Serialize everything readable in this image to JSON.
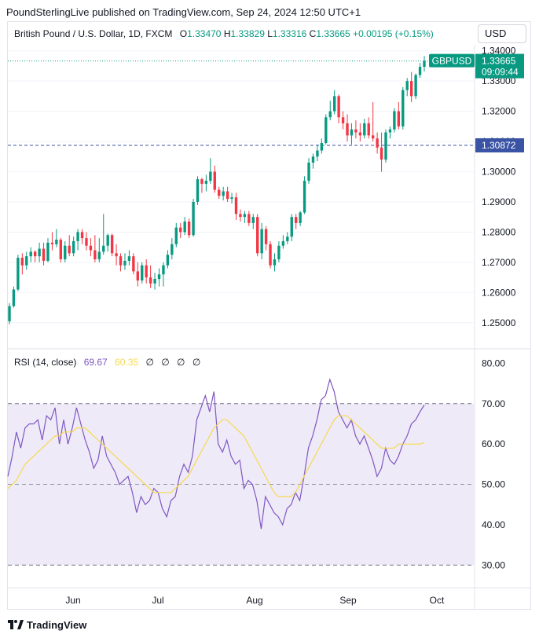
{
  "header": {
    "publisher": "PoundSterlingLive published on TradingView.com, Sep 24, 2024 12:50 UTC+1"
  },
  "legend": {
    "symbol": "British Pound / U.S. Dollar, 1D, FXCM",
    "o_label": "O",
    "o_value": "1.33470",
    "h_label": "H",
    "h_value": "1.33829",
    "l_label": "L",
    "l_value": "1.33316",
    "c_label": "C",
    "c_value": "1.33665",
    "change": "+0.00195 (+0.15%)"
  },
  "currency_button": "USD",
  "price_tags": {
    "symbol_tag": "GBPUSD",
    "last_price": "1.33665",
    "countdown": "09:09:44",
    "line_price": "1.30872"
  },
  "rsi_legend": {
    "name": "RSI (14, close)",
    "rsi_value": "69.67",
    "ma_value": "60.35",
    "na": [
      "∅",
      "∅",
      "∅",
      "∅"
    ]
  },
  "footer": {
    "brand": "TradingView"
  },
  "colors": {
    "up": "#089981",
    "down": "#f23645",
    "rsi": "#7e57c2",
    "rsi_ma": "#f7d94c",
    "band": "#efeaf8",
    "hline": "#3a53a4"
  },
  "chart_data": [
    {
      "type": "candlestick",
      "title": "British Pound / U.S. Dollar, 1D, FXCM",
      "ylim": [
        1.245,
        1.342
      ],
      "y_ticks": [
        "1.25000",
        "1.26000",
        "1.27000",
        "1.28000",
        "1.29000",
        "1.30000",
        "1.31000",
        "1.32000",
        "1.33000",
        "1.34000"
      ],
      "x_ticks": [
        "Jun",
        "Jul",
        "Aug",
        "Sep",
        "Oct"
      ],
      "horizontal_line": 1.30872,
      "last_close": 1.33665,
      "candles": [
        {
          "o": 1.2505,
          "h": 1.2565,
          "l": 1.2495,
          "c": 1.2555
        },
        {
          "o": 1.2555,
          "h": 1.262,
          "l": 1.255,
          "c": 1.261
        },
        {
          "o": 1.261,
          "h": 1.2725,
          "l": 1.2605,
          "c": 1.2715
        },
        {
          "o": 1.2715,
          "h": 1.273,
          "l": 1.266,
          "c": 1.269
        },
        {
          "o": 1.269,
          "h": 1.2735,
          "l": 1.2675,
          "c": 1.272
        },
        {
          "o": 1.272,
          "h": 1.275,
          "l": 1.27,
          "c": 1.2735
        },
        {
          "o": 1.2735,
          "h": 1.274,
          "l": 1.27,
          "c": 1.272
        },
        {
          "o": 1.272,
          "h": 1.2765,
          "l": 1.27,
          "c": 1.2745
        },
        {
          "o": 1.2745,
          "h": 1.2765,
          "l": 1.269,
          "c": 1.2705
        },
        {
          "o": 1.2705,
          "h": 1.278,
          "l": 1.27,
          "c": 1.2765
        },
        {
          "o": 1.2765,
          "h": 1.28,
          "l": 1.274,
          "c": 1.276
        },
        {
          "o": 1.276,
          "h": 1.281,
          "l": 1.275,
          "c": 1.2775
        },
        {
          "o": 1.2775,
          "h": 1.278,
          "l": 1.27,
          "c": 1.271
        },
        {
          "o": 1.271,
          "h": 1.277,
          "l": 1.27,
          "c": 1.2755
        },
        {
          "o": 1.2755,
          "h": 1.279,
          "l": 1.272,
          "c": 1.273
        },
        {
          "o": 1.273,
          "h": 1.2785,
          "l": 1.272,
          "c": 1.277
        },
        {
          "o": 1.277,
          "h": 1.281,
          "l": 1.274,
          "c": 1.28
        },
        {
          "o": 1.28,
          "h": 1.281,
          "l": 1.276,
          "c": 1.278
        },
        {
          "o": 1.278,
          "h": 1.28,
          "l": 1.274,
          "c": 1.2755
        },
        {
          "o": 1.2755,
          "h": 1.278,
          "l": 1.272,
          "c": 1.274
        },
        {
          "o": 1.274,
          "h": 1.279,
          "l": 1.27,
          "c": 1.271
        },
        {
          "o": 1.271,
          "h": 1.278,
          "l": 1.27,
          "c": 1.2735
        },
        {
          "o": 1.2735,
          "h": 1.286,
          "l": 1.2725,
          "c": 1.2755
        },
        {
          "o": 1.2755,
          "h": 1.2795,
          "l": 1.2735,
          "c": 1.279
        },
        {
          "o": 1.279,
          "h": 1.2795,
          "l": 1.272,
          "c": 1.273
        },
        {
          "o": 1.273,
          "h": 1.276,
          "l": 1.269,
          "c": 1.272
        },
        {
          "o": 1.272,
          "h": 1.273,
          "l": 1.267,
          "c": 1.269
        },
        {
          "o": 1.269,
          "h": 1.273,
          "l": 1.2675,
          "c": 1.2705
        },
        {
          "o": 1.2705,
          "h": 1.274,
          "l": 1.269,
          "c": 1.272
        },
        {
          "o": 1.272,
          "h": 1.273,
          "l": 1.266,
          "c": 1.267
        },
        {
          "o": 1.267,
          "h": 1.27,
          "l": 1.262,
          "c": 1.264
        },
        {
          "o": 1.264,
          "h": 1.27,
          "l": 1.263,
          "c": 1.269
        },
        {
          "o": 1.269,
          "h": 1.271,
          "l": 1.263,
          "c": 1.265
        },
        {
          "o": 1.265,
          "h": 1.269,
          "l": 1.2615,
          "c": 1.263
        },
        {
          "o": 1.263,
          "h": 1.2665,
          "l": 1.261,
          "c": 1.2645
        },
        {
          "o": 1.2645,
          "h": 1.268,
          "l": 1.262,
          "c": 1.266
        },
        {
          "o": 1.266,
          "h": 1.27,
          "l": 1.262,
          "c": 1.269
        },
        {
          "o": 1.269,
          "h": 1.274,
          "l": 1.268,
          "c": 1.2725
        },
        {
          "o": 1.2725,
          "h": 1.278,
          "l": 1.271,
          "c": 1.276
        },
        {
          "o": 1.276,
          "h": 1.283,
          "l": 1.275,
          "c": 1.2815
        },
        {
          "o": 1.2815,
          "h": 1.283,
          "l": 1.278,
          "c": 1.28
        },
        {
          "o": 1.28,
          "h": 1.285,
          "l": 1.279,
          "c": 1.2835
        },
        {
          "o": 1.2835,
          "h": 1.2845,
          "l": 1.278,
          "c": 1.279
        },
        {
          "o": 1.279,
          "h": 1.291,
          "l": 1.2785,
          "c": 1.29
        },
        {
          "o": 1.29,
          "h": 1.2985,
          "l": 1.289,
          "c": 1.2975
        },
        {
          "o": 1.2975,
          "h": 1.298,
          "l": 1.293,
          "c": 1.296
        },
        {
          "o": 1.296,
          "h": 1.299,
          "l": 1.2935,
          "c": 1.297
        },
        {
          "o": 1.297,
          "h": 1.3045,
          "l": 1.296,
          "c": 1.3
        },
        {
          "o": 1.3,
          "h": 1.302,
          "l": 1.293,
          "c": 1.294
        },
        {
          "o": 1.294,
          "h": 1.295,
          "l": 1.291,
          "c": 1.292
        },
        {
          "o": 1.292,
          "h": 1.295,
          "l": 1.2905,
          "c": 1.2935
        },
        {
          "o": 1.2935,
          "h": 1.295,
          "l": 1.29,
          "c": 1.291
        },
        {
          "o": 1.291,
          "h": 1.293,
          "l": 1.2895,
          "c": 1.2915
        },
        {
          "o": 1.2915,
          "h": 1.293,
          "l": 1.284,
          "c": 1.286
        },
        {
          "o": 1.286,
          "h": 1.2875,
          "l": 1.2835,
          "c": 1.285
        },
        {
          "o": 1.285,
          "h": 1.287,
          "l": 1.283,
          "c": 1.286
        },
        {
          "o": 1.286,
          "h": 1.287,
          "l": 1.282,
          "c": 1.283
        },
        {
          "o": 1.283,
          "h": 1.286,
          "l": 1.281,
          "c": 1.285
        },
        {
          "o": 1.285,
          "h": 1.286,
          "l": 1.272,
          "c": 1.273
        },
        {
          "o": 1.273,
          "h": 1.283,
          "l": 1.271,
          "c": 1.281
        },
        {
          "o": 1.281,
          "h": 1.282,
          "l": 1.274,
          "c": 1.276
        },
        {
          "o": 1.276,
          "h": 1.277,
          "l": 1.268,
          "c": 1.269
        },
        {
          "o": 1.269,
          "h": 1.273,
          "l": 1.267,
          "c": 1.271
        },
        {
          "o": 1.271,
          "h": 1.277,
          "l": 1.27,
          "c": 1.2755
        },
        {
          "o": 1.2755,
          "h": 1.279,
          "l": 1.2745,
          "c": 1.277
        },
        {
          "o": 1.277,
          "h": 1.28,
          "l": 1.276,
          "c": 1.2785
        },
        {
          "o": 1.2785,
          "h": 1.286,
          "l": 1.277,
          "c": 1.285
        },
        {
          "o": 1.285,
          "h": 1.286,
          "l": 1.281,
          "c": 1.283
        },
        {
          "o": 1.283,
          "h": 1.287,
          "l": 1.282,
          "c": 1.2865
        },
        {
          "o": 1.2865,
          "h": 1.2985,
          "l": 1.286,
          "c": 1.297
        },
        {
          "o": 1.297,
          "h": 1.3045,
          "l": 1.296,
          "c": 1.303
        },
        {
          "o": 1.303,
          "h": 1.306,
          "l": 1.301,
          "c": 1.305
        },
        {
          "o": 1.305,
          "h": 1.309,
          "l": 1.3035,
          "c": 1.307
        },
        {
          "o": 1.307,
          "h": 1.311,
          "l": 1.306,
          "c": 1.3095
        },
        {
          "o": 1.3095,
          "h": 1.319,
          "l": 1.309,
          "c": 1.318
        },
        {
          "o": 1.318,
          "h": 1.3235,
          "l": 1.317,
          "c": 1.32
        },
        {
          "o": 1.32,
          "h": 1.327,
          "l": 1.319,
          "c": 1.325
        },
        {
          "o": 1.325,
          "h": 1.3255,
          "l": 1.316,
          "c": 1.318
        },
        {
          "o": 1.318,
          "h": 1.32,
          "l": 1.314,
          "c": 1.316
        },
        {
          "o": 1.316,
          "h": 1.319,
          "l": 1.31,
          "c": 1.312
        },
        {
          "o": 1.312,
          "h": 1.316,
          "l": 1.309,
          "c": 1.314
        },
        {
          "o": 1.314,
          "h": 1.317,
          "l": 1.311,
          "c": 1.313
        },
        {
          "o": 1.313,
          "h": 1.316,
          "l": 1.31,
          "c": 1.312
        },
        {
          "o": 1.312,
          "h": 1.3175,
          "l": 1.311,
          "c": 1.316
        },
        {
          "o": 1.316,
          "h": 1.318,
          "l": 1.311,
          "c": 1.312
        },
        {
          "o": 1.312,
          "h": 1.323,
          "l": 1.31,
          "c": 1.311
        },
        {
          "o": 1.311,
          "h": 1.313,
          "l": 1.306,
          "c": 1.308
        },
        {
          "o": 1.308,
          "h": 1.313,
          "l": 1.3,
          "c": 1.304
        },
        {
          "o": 1.304,
          "h": 1.314,
          "l": 1.303,
          "c": 1.313
        },
        {
          "o": 1.313,
          "h": 1.315,
          "l": 1.311,
          "c": 1.314
        },
        {
          "o": 1.314,
          "h": 1.321,
          "l": 1.313,
          "c": 1.32
        },
        {
          "o": 1.32,
          "h": 1.323,
          "l": 1.314,
          "c": 1.315
        },
        {
          "o": 1.315,
          "h": 1.328,
          "l": 1.314,
          "c": 1.327
        },
        {
          "o": 1.327,
          "h": 1.331,
          "l": 1.325,
          "c": 1.33
        },
        {
          "o": 1.33,
          "h": 1.333,
          "l": 1.323,
          "c": 1.325
        },
        {
          "o": 1.325,
          "h": 1.3325,
          "l": 1.324,
          "c": 1.332
        },
        {
          "o": 1.332,
          "h": 1.336,
          "l": 1.331,
          "c": 1.3347
        },
        {
          "o": 1.3347,
          "h": 1.33829,
          "l": 1.33316,
          "c": 1.33665
        }
      ]
    },
    {
      "type": "line",
      "title": "RSI (14, close)",
      "ylim": [
        25,
        83
      ],
      "y_ticks": [
        "30.00",
        "40.00",
        "50.00",
        "60.00",
        "70.00",
        "80.00"
      ],
      "levels": [
        30,
        50,
        70
      ],
      "series": [
        {
          "name": "RSI",
          "values": [
            52,
            57,
            63,
            59,
            64,
            65,
            65,
            66,
            61,
            67,
            66,
            69,
            60,
            66,
            60,
            64,
            69,
            65,
            61,
            58,
            54,
            56,
            62,
            57,
            55,
            53,
            50,
            51,
            52,
            48,
            43,
            47,
            45,
            46,
            49,
            48,
            44,
            42,
            46,
            47,
            52,
            55,
            53,
            57,
            66,
            69,
            72,
            68,
            73,
            60,
            58,
            61,
            57,
            55,
            56,
            49,
            51,
            50,
            46,
            39,
            47,
            45,
            43,
            42,
            40,
            44,
            45,
            48,
            46,
            52,
            59,
            62,
            66,
            71,
            72,
            76,
            73,
            68,
            66,
            64,
            66,
            62,
            60,
            62,
            59,
            56,
            52,
            54,
            59,
            56,
            55,
            57,
            60,
            62,
            65,
            66,
            68,
            69.67
          ]
        },
        {
          "name": "MA",
          "values": [
            49,
            50,
            51,
            53,
            55,
            56,
            57,
            58,
            59,
            60,
            61,
            62,
            62,
            63,
            63,
            63,
            64,
            64,
            64,
            63,
            62,
            61,
            60,
            59,
            58,
            57,
            56,
            55,
            54,
            53,
            52,
            51,
            50,
            49,
            48,
            48,
            48,
            48,
            48,
            49,
            50,
            51,
            52,
            54,
            56,
            58,
            60,
            62,
            64,
            65,
            66,
            66,
            65,
            64,
            63,
            62,
            60,
            58,
            56,
            54,
            52,
            50,
            48,
            47,
            47,
            47,
            47,
            48,
            50,
            52,
            54,
            56,
            58,
            60,
            62,
            64,
            66,
            67,
            67,
            67,
            66,
            65,
            64,
            63,
            62,
            61,
            60,
            59,
            59,
            59,
            59,
            60,
            60,
            60,
            60,
            60,
            60,
            60.35
          ]
        }
      ]
    }
  ]
}
